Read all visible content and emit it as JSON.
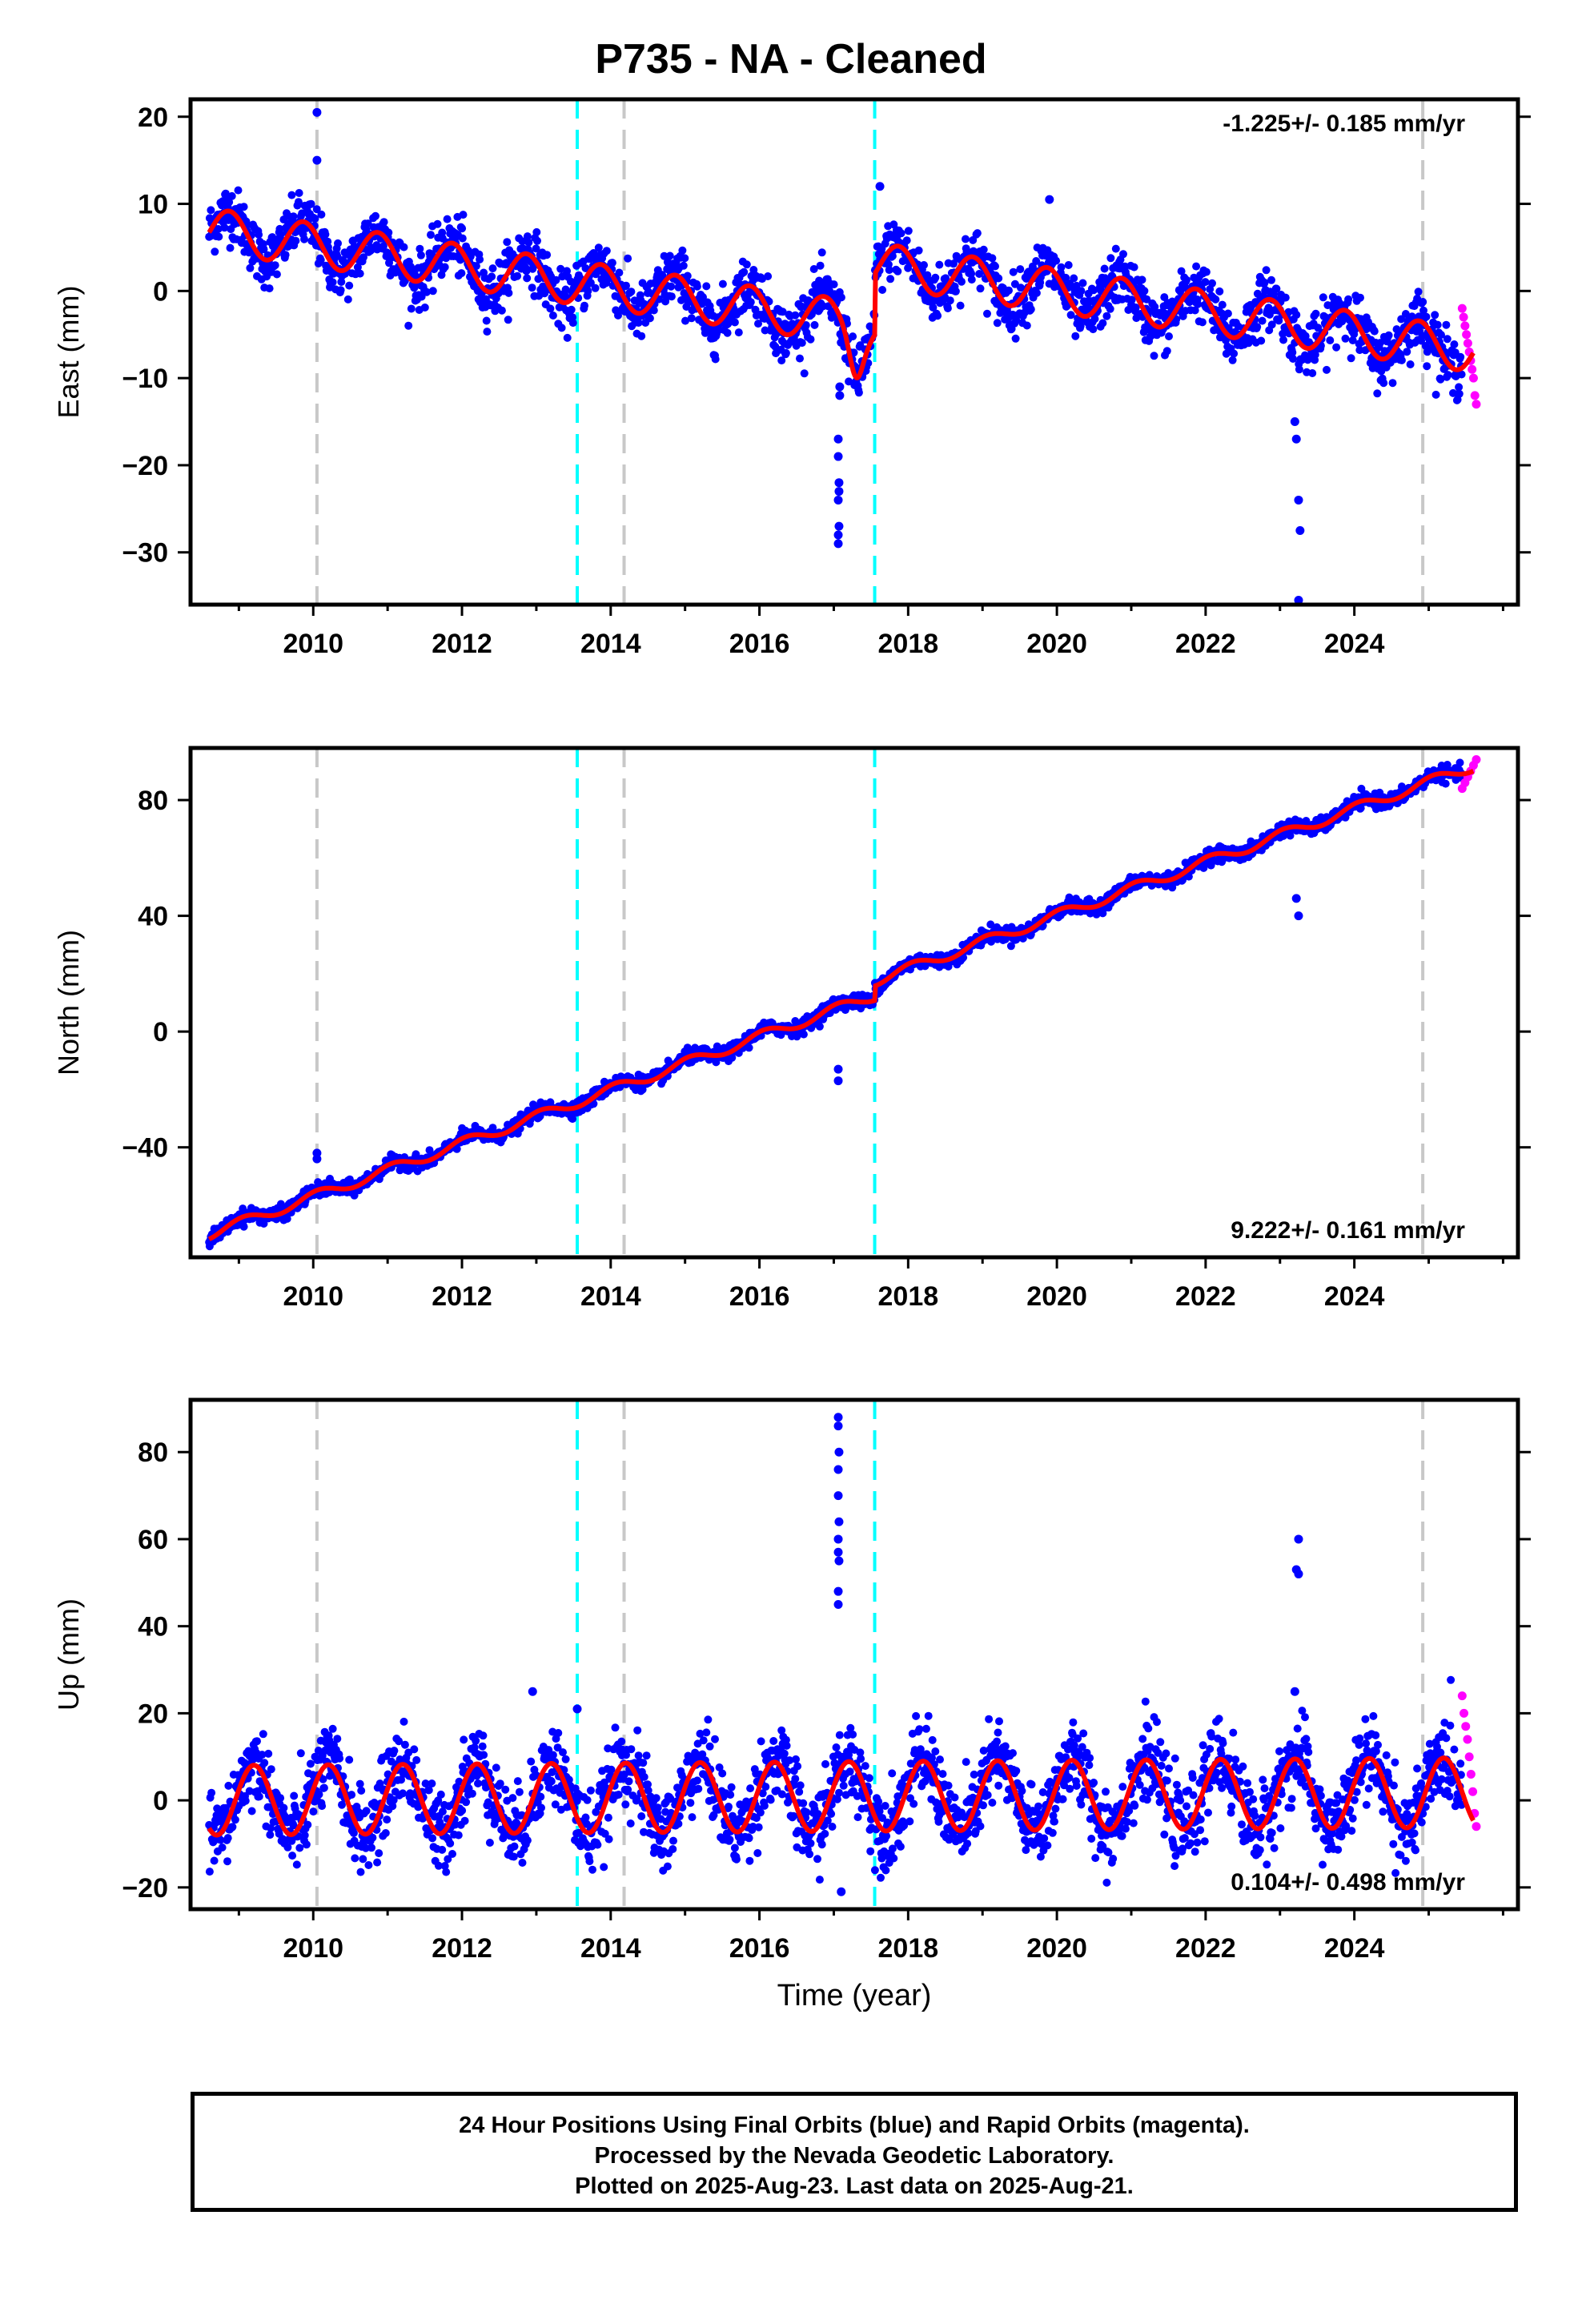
{
  "title": "P735  - NA - Cleaned",
  "xlabel": "Time (year)",
  "footer": {
    "line1": "24 Hour Positions Using Final Orbits (blue) and Rapid Orbits (magenta).",
    "line2": "Processed by the Nevada Geodetic Laboratory.",
    "line3": "Plotted on 2025-Aug-23. Last data on 2025-Aug-21."
  },
  "colors": {
    "final": "#0000ff",
    "rapid": "#ff00ff",
    "model": "#ff0000",
    "equipment_change": "#c8c8c8",
    "earthquake": "#00ffff"
  },
  "event_lines": {
    "equipment_change": [
      2010.05,
      2014.18,
      2024.92
    ],
    "earthquake": [
      2013.55,
      2017.55
    ]
  },
  "chart_data": [
    {
      "type": "scatter",
      "name": "east",
      "ylabel": "East (mm)",
      "rate": "-1.225+/- 0.185 mm/yr",
      "rate_position": "top-right",
      "xlim": [
        2008.35,
        2026.2
      ],
      "ylim": [
        -36,
        22
      ],
      "xticks": [
        2010,
        2012,
        2014,
        2016,
        2018,
        2020,
        2022,
        2024
      ],
      "yticks": [
        20,
        10,
        0,
        -10,
        -20,
        -30
      ],
      "model": {
        "start": 2008.6,
        "end": 2025.6,
        "rate": -1.225,
        "intercept_at_start": 7.0,
        "annual_amplitude": 2.5,
        "annual_phase": 2.4,
        "noise_sd": 1.6,
        "offsets": [
          {
            "at": 2017.55,
            "value": 7.0
          }
        ],
        "dip": {
          "at": 2017.3,
          "depth": -4.0,
          "width": 0.12
        }
      },
      "final_range": [
        2008.6,
        2025.45
      ],
      "rapid_range": [
        2025.45,
        2025.64
      ],
      "rapid_values": [
        -2,
        -3,
        -4,
        -5,
        -6,
        -7,
        -8,
        -9,
        -10,
        -12,
        -13
      ],
      "outliers": [
        {
          "x": 2010.05,
          "y": 20.5
        },
        {
          "x": 2010.05,
          "y": 15.0
        },
        {
          "x": 2017.08,
          "y": -11
        },
        {
          "x": 2017.08,
          "y": -12
        },
        {
          "x": 2017.06,
          "y": -17
        },
        {
          "x": 2017.06,
          "y": -19
        },
        {
          "x": 2017.07,
          "y": -22
        },
        {
          "x": 2017.07,
          "y": -23
        },
        {
          "x": 2017.06,
          "y": -24
        },
        {
          "x": 2017.07,
          "y": -27
        },
        {
          "x": 2017.06,
          "y": -28
        },
        {
          "x": 2017.06,
          "y": -29
        },
        {
          "x": 2017.62,
          "y": 12
        },
        {
          "x": 2019.9,
          "y": 10.5
        },
        {
          "x": 2023.2,
          "y": -15
        },
        {
          "x": 2023.22,
          "y": -17
        },
        {
          "x": 2023.25,
          "y": -24
        },
        {
          "x": 2023.27,
          "y": -27.5
        },
        {
          "x": 2023.25,
          "y": -35.5
        }
      ]
    },
    {
      "type": "scatter",
      "name": "north",
      "ylabel": "North (mm)",
      "rate": "9.222+/- 0.161 mm/yr",
      "rate_position": "bottom-right",
      "xlim": [
        2008.35,
        2026.2
      ],
      "ylim": [
        -78,
        98
      ],
      "xticks": [
        2010,
        2012,
        2014,
        2016,
        2018,
        2020,
        2022,
        2024
      ],
      "yticks": [
        80,
        40,
        0,
        -40
      ],
      "model": {
        "start": 2008.6,
        "end": 2025.6,
        "rate": 9.222,
        "intercept_at_start": -70.0,
        "annual_amplitude": 1.8,
        "annual_phase": 1.2,
        "noise_sd": 1.2,
        "offsets": [
          {
            "at": 2017.55,
            "value": 5.0
          }
        ]
      },
      "final_range": [
        2008.6,
        2025.45
      ],
      "rapid_range": [
        2025.45,
        2025.64
      ],
      "rapid_values": [
        84,
        86,
        88,
        90,
        92,
        94
      ],
      "outliers": [
        {
          "x": 2010.05,
          "y": -42
        },
        {
          "x": 2010.05,
          "y": -44
        },
        {
          "x": 2017.06,
          "y": -13
        },
        {
          "x": 2017.06,
          "y": -17
        },
        {
          "x": 2017.02,
          "y": 10
        },
        {
          "x": 2023.25,
          "y": 40
        },
        {
          "x": 2023.22,
          "y": 46
        },
        {
          "x": 2013.3,
          "y": -26
        }
      ]
    },
    {
      "type": "scatter",
      "name": "up",
      "ylabel": "Up (mm)",
      "rate": "0.104+/- 0.498 mm/yr",
      "rate_position": "bottom-right",
      "xlim": [
        2008.35,
        2026.2
      ],
      "ylim": [
        -25,
        92
      ],
      "xticks": [
        2010,
        2012,
        2014,
        2016,
        2018,
        2020,
        2022,
        2024
      ],
      "yticks": [
        80,
        60,
        40,
        20,
        0,
        -20
      ],
      "model": {
        "start": 2008.6,
        "end": 2025.6,
        "rate": 0.104,
        "intercept_at_start": 0.0,
        "annual_amplitude": 8.0,
        "annual_phase": 0.3,
        "noise_sd": 4.5,
        "offsets": []
      },
      "final_range": [
        2008.6,
        2025.45
      ],
      "rapid_range": [
        2025.45,
        2025.64
      ],
      "rapid_values": [
        24,
        20,
        17,
        14,
        10,
        6,
        2,
        -3,
        -6
      ],
      "outliers": [
        {
          "x": 2017.06,
          "y": 88
        },
        {
          "x": 2017.06,
          "y": 86
        },
        {
          "x": 2017.07,
          "y": 80
        },
        {
          "x": 2017.06,
          "y": 76
        },
        {
          "x": 2017.06,
          "y": 70
        },
        {
          "x": 2017.07,
          "y": 64
        },
        {
          "x": 2017.06,
          "y": 60
        },
        {
          "x": 2017.06,
          "y": 57
        },
        {
          "x": 2017.07,
          "y": 55
        },
        {
          "x": 2017.06,
          "y": 48
        },
        {
          "x": 2017.06,
          "y": 45
        },
        {
          "x": 2023.25,
          "y": 60
        },
        {
          "x": 2023.25,
          "y": 52
        },
        {
          "x": 2023.22,
          "y": 53
        },
        {
          "x": 2023.2,
          "y": 25
        },
        {
          "x": 2017.1,
          "y": -21
        },
        {
          "x": 2013.55,
          "y": 21
        },
        {
          "x": 2012.95,
          "y": 25
        }
      ]
    }
  ]
}
